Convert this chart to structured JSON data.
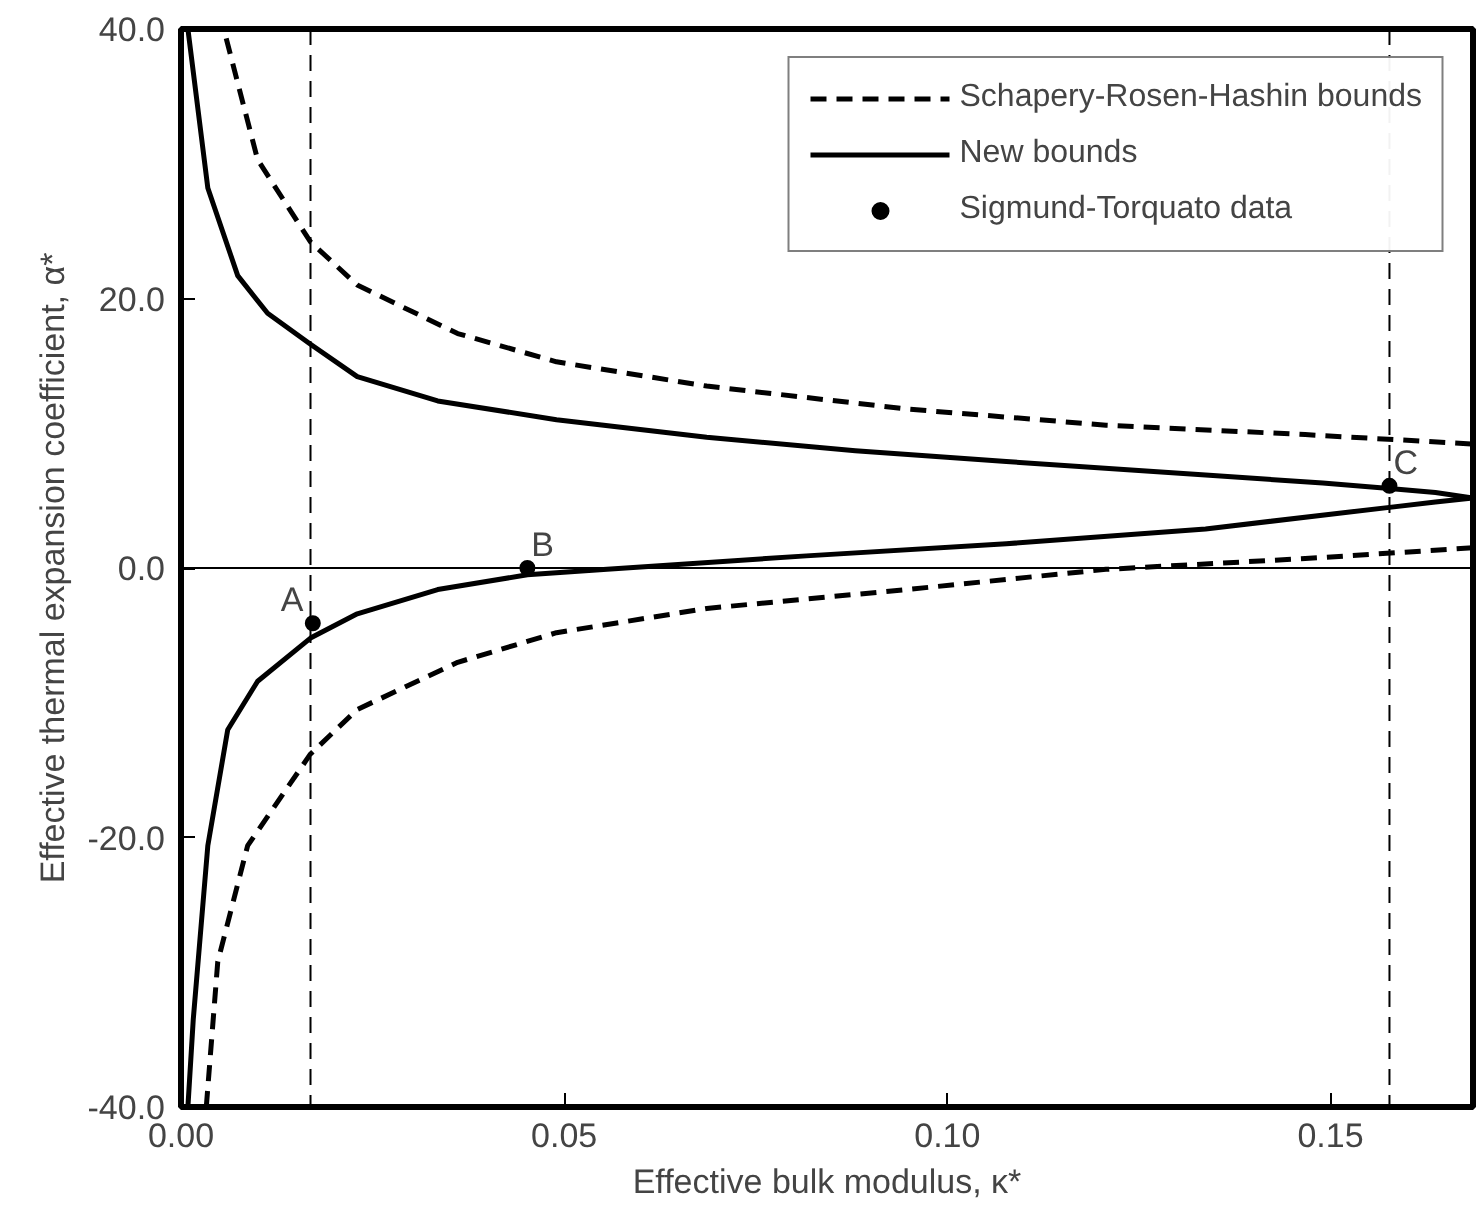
{
  "chart_data": {
    "type": "line",
    "xlabel": "Effective bulk modulus, κ*",
    "ylabel": "Effective thermal expansion coefficient, α*",
    "xlim": [
      0,
      0.1686
    ],
    "ylim": [
      -40,
      40
    ],
    "xticks": [
      {
        "value": 0,
        "label": "0.00"
      },
      {
        "value": 0.05,
        "label": "0.05"
      },
      {
        "value": 0.1,
        "label": "0.10"
      },
      {
        "value": 0.15,
        "label": "0.15"
      }
    ],
    "yticks": [
      {
        "value": -40,
        "label": "-40.0"
      },
      {
        "value": -20,
        "label": "-20.0"
      },
      {
        "value": 0,
        "label": "0.0"
      },
      {
        "value": 20,
        "label": "20.0"
      },
      {
        "value": 40,
        "label": "40.0"
      }
    ],
    "grid": false,
    "legend": "top right",
    "series": [
      {
        "name": "Schapery-Rosen-Hashin bounds",
        "line_style": "dashed",
        "color": "#000000",
        "x": [
          0.0059,
          0.01,
          0.0169,
          0.023,
          0.0361,
          0.049,
          0.0686,
          0.0947,
          0.1207,
          0.1467,
          0.1686
        ],
        "values": [
          39.3,
          30.3,
          24.2,
          21.0,
          17.4,
          15.3,
          13.5,
          11.8,
          10.6,
          9.9,
          9.2
        ]
      },
      {
        "line_style": "dashed",
        "color": "#000000",
        "x": [
          0.0033,
          0.0048,
          0.0087,
          0.0169,
          0.023,
          0.0361,
          0.049,
          0.0686,
          0.0947,
          0.1207,
          0.1467,
          0.1686
        ],
        "values": [
          -40,
          -29.2,
          -20.6,
          -13.8,
          -10.5,
          -7.0,
          -4.8,
          -3.0,
          -1.6,
          -0.1,
          0.7,
          1.5
        ]
      },
      {
        "name": "New bounds",
        "line_style": "solid",
        "color": "#000000",
        "x": [
          0.0009,
          0.0035,
          0.0074,
          0.0113,
          0.0169,
          0.023,
          0.0335,
          0.049,
          0.0686,
          0.088,
          0.1077,
          0.1337,
          0.149,
          0.1577,
          0.1637,
          0.1686,
          0.1637,
          0.1577,
          0.1337,
          0.1077,
          0.0816,
          0.0556,
          0.0452,
          0.0335,
          0.023,
          0.0169,
          0.01,
          0.0061,
          0.0035,
          0.0016,
          0.0009
        ],
        "values": [
          40,
          28.2,
          21.7,
          18.9,
          16.6,
          14.2,
          12.4,
          11.0,
          9.7,
          8.7,
          7.9,
          6.9,
          6.3,
          5.9,
          5.6,
          5.2,
          4.9,
          4.5,
          2.9,
          1.8,
          0.9,
          -0.1,
          -0.5,
          -1.6,
          -3.4,
          -5.2,
          -8.4,
          -12.0,
          -20.6,
          -33.5,
          -40
        ]
      },
      {
        "name": "Sigmund-Torquato data",
        "type": "scatter",
        "marker": "circle",
        "color": "#000000",
        "x": [
          0.0172,
          0.0452,
          0.1577
        ],
        "values": [
          -4.1,
          0.0,
          6.1
        ]
      }
    ],
    "ref_lines": [
      {
        "axis": "x",
        "value": 0.0169,
        "line_style": "dashed"
      },
      {
        "axis": "x",
        "value": 0.1577,
        "line_style": "dashed"
      },
      {
        "axis": "y",
        "value": 0,
        "line_style": "solid"
      }
    ],
    "annotations": [
      {
        "text": "A",
        "x": 0.0172,
        "y": -4.1
      },
      {
        "text": "B",
        "x": 0.0452,
        "y": 0.0
      },
      {
        "text": "C",
        "x": 0.1577,
        "y": 6.1
      }
    ]
  }
}
